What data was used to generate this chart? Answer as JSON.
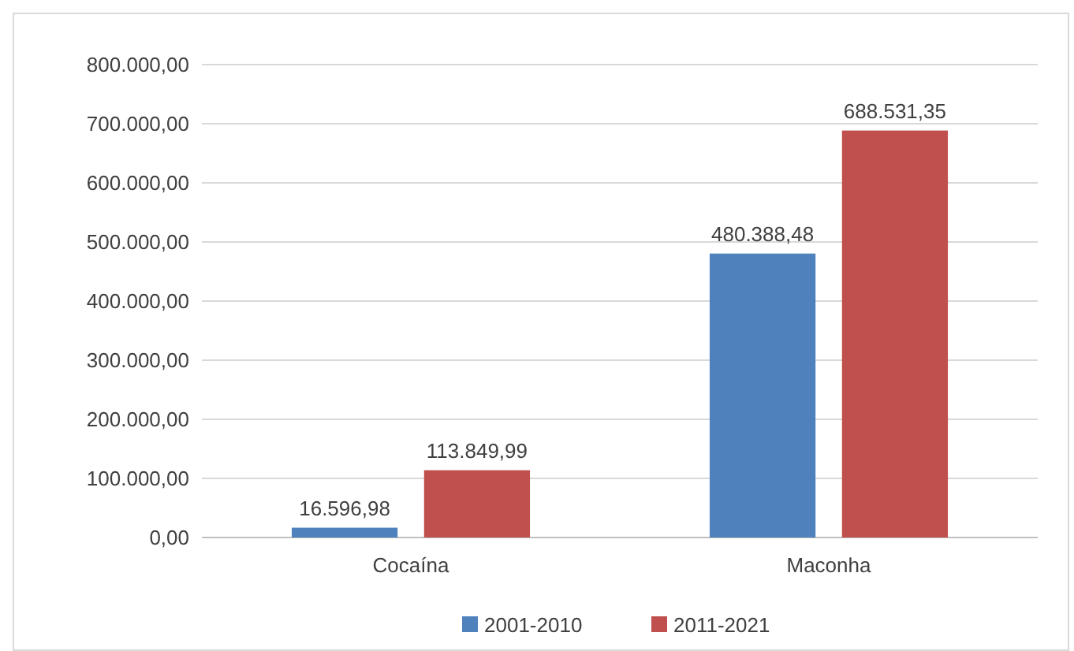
{
  "chart_data": {
    "type": "bar",
    "categories": [
      "Cocaína",
      "Maconha"
    ],
    "series": [
      {
        "name": "2001-2010",
        "color": "#4f81bd",
        "values": [
          16596.98,
          480388.48
        ],
        "value_labels": [
          "16.596,98",
          "480.388,48"
        ]
      },
      {
        "name": "2011-2021",
        "color": "#c0504d",
        "values": [
          113849.99,
          688531.35
        ],
        "value_labels": [
          "113.849,99",
          "688.531,35"
        ]
      }
    ],
    "ylim": [
      0,
      800000
    ],
    "yticks": [
      {
        "value": 0,
        "label": "0,00"
      },
      {
        "value": 100000,
        "label": "100.000,00"
      },
      {
        "value": 200000,
        "label": "200.000,00"
      },
      {
        "value": 300000,
        "label": "300.000,00"
      },
      {
        "value": 400000,
        "label": "400.000,00"
      },
      {
        "value": 500000,
        "label": "500.000,00"
      },
      {
        "value": 600000,
        "label": "600.000,00"
      },
      {
        "value": 700000,
        "label": "700.000,00"
      },
      {
        "value": 800000,
        "label": "800.000,00"
      }
    ],
    "grid": "y",
    "legend": "bottom"
  }
}
